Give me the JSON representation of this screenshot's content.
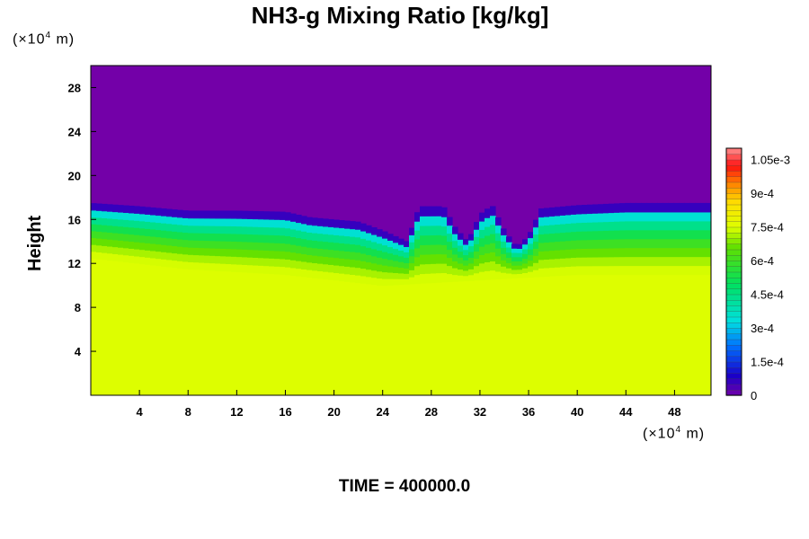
{
  "chart_data": {
    "type": "heatmap",
    "title": "NH3-g Mixing Ratio [kg/kg]",
    "ylabel": "Height",
    "x_unit": {
      "prefix": "(×10",
      "exp": "4",
      "suffix": " m)"
    },
    "y_unit": {
      "prefix": "(×10",
      "exp": "4",
      "suffix": " m)"
    },
    "xlim": [
      0,
      51
    ],
    "ylim": [
      0,
      30
    ],
    "x_ticks": [
      4,
      8,
      12,
      16,
      20,
      24,
      28,
      32,
      36,
      40,
      44,
      48
    ],
    "y_ticks": [
      4,
      8,
      12,
      16,
      20,
      24,
      28
    ],
    "colorbar": {
      "range": [
        0,
        0.0011
      ],
      "tick_values": [
        0,
        0.00015,
        0.0003,
        0.00045,
        0.0006,
        0.00075,
        0.0009,
        0.00105
      ],
      "tick_labels": [
        "0",
        "1.5e-4",
        "3e-4",
        "4.5e-4",
        "6e-4",
        "7.5e-4",
        "9e-4",
        "1.05e-3"
      ]
    },
    "field": {
      "lower_value": 0.00075,
      "upper_value": 0.0,
      "boundary_height": [
        [
          0,
          17.5
        ],
        [
          4,
          17.2
        ],
        [
          8,
          16.8
        ],
        [
          12,
          16.8
        ],
        [
          16,
          16.7
        ],
        [
          18,
          16.2
        ],
        [
          20,
          16.0
        ],
        [
          22,
          15.8
        ],
        [
          24,
          15.0
        ],
        [
          26,
          14.0
        ],
        [
          27,
          17.2
        ],
        [
          29,
          17.2
        ],
        [
          30,
          15.2
        ],
        [
          31,
          14.0
        ],
        [
          32,
          16.5
        ],
        [
          33,
          17.3
        ],
        [
          34,
          15.0
        ],
        [
          35,
          13.5
        ],
        [
          36,
          14.5
        ],
        [
          37,
          17.0
        ],
        [
          40,
          17.3
        ],
        [
          44,
          17.5
        ],
        [
          48,
          17.5
        ],
        [
          51,
          17.5
        ]
      ],
      "mixed_layer_bottom": [
        [
          0,
          12.5
        ],
        [
          8,
          11.5
        ],
        [
          16,
          11.0
        ],
        [
          24,
          10.0
        ],
        [
          32,
          10.5
        ],
        [
          40,
          11.0
        ],
        [
          48,
          11.0
        ],
        [
          51,
          11.0
        ]
      ]
    },
    "annotation": {
      "label": "TIME = ",
      "value": "400000.0"
    }
  }
}
